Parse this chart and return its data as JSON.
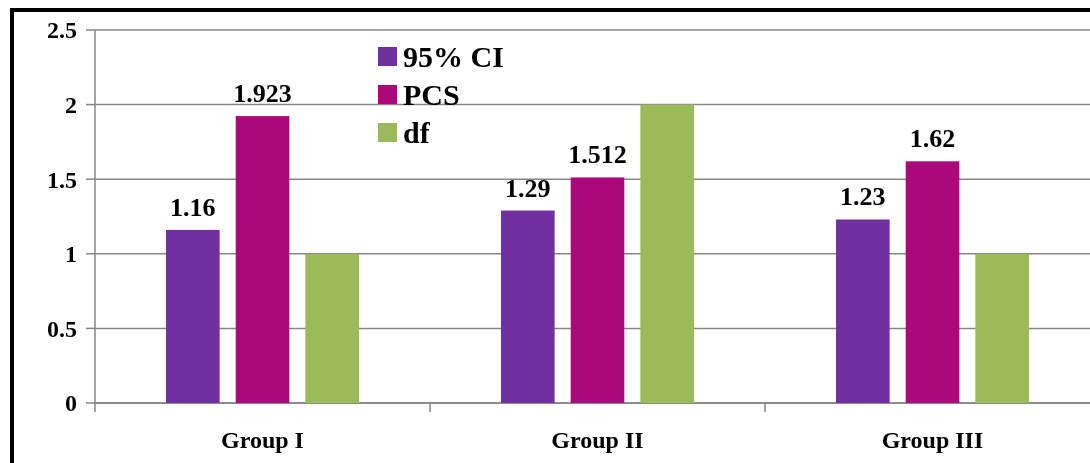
{
  "chart_data": {
    "type": "bar",
    "categories": [
      "Group I",
      "Group II",
      "Group III"
    ],
    "series": [
      {
        "name": "95% CI",
        "color": "#7030a0",
        "values": [
          1.16,
          1.29,
          1.23
        ],
        "value_labels": [
          "1.16",
          "1.29",
          "1.23"
        ]
      },
      {
        "name": "PCS",
        "color": "#a9097b",
        "values": [
          1.923,
          1.512,
          1.62
        ],
        "value_labels": [
          "1.923",
          "1.512",
          "1.62"
        ]
      },
      {
        "name": "df",
        "color": "#9bbb59",
        "values": [
          1,
          2,
          1
        ],
        "value_labels": [
          null,
          null,
          null
        ]
      }
    ],
    "ylim": [
      0,
      2.5
    ],
    "yticks": [
      0,
      0.5,
      1,
      1.5,
      2,
      2.5
    ],
    "grid": "y",
    "legend": "top"
  }
}
